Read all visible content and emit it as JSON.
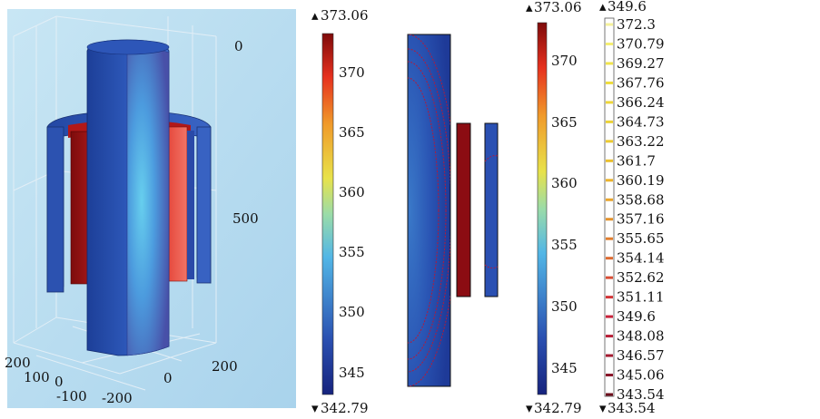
{
  "panel3d": {
    "z_ticks": [
      "0",
      "500"
    ],
    "x_ticks": [
      "200",
      "100",
      "0",
      "-100",
      "-200"
    ],
    "y_ticks": [
      "0",
      "200"
    ]
  },
  "colorbar1": {
    "max_label": "373.06",
    "min_label": "342.79",
    "ticks": [
      "370",
      "365",
      "360",
      "355",
      "350",
      "345"
    ]
  },
  "colorbar2": {
    "max_label": "373.06",
    "min_label": "342.79",
    "ticks": [
      "370",
      "365",
      "360",
      "355",
      "350",
      "345"
    ]
  },
  "contour_legend": {
    "max_label": "349.6",
    "min_label": "343.54",
    "levels": [
      "372.3",
      "370.79",
      "369.27",
      "367.76",
      "366.24",
      "364.73",
      "363.22",
      "361.7",
      "360.19",
      "358.68",
      "357.16",
      "355.65",
      "354.14",
      "352.62",
      "351.11",
      "349.6",
      "348.08",
      "346.57",
      "345.06",
      "343.54"
    ],
    "level_colors": [
      "#f5f29a",
      "#f5ee70",
      "#f0e44c",
      "#eedc3a",
      "#eed63a",
      "#ecd236",
      "#ecca30",
      "#eabf2c",
      "#ebb32c",
      "#e9a52c",
      "#e5932c",
      "#e27e2e",
      "#dd6a30",
      "#d84d34",
      "#d33335",
      "#c9223a",
      "#b81e36",
      "#a41a30",
      "#8a1428",
      "#6e0e1d"
    ]
  },
  "colors": {
    "background_3d": "#bcdff0",
    "cold": "#2a4fa8",
    "hot": "#8b1010",
    "mid": "#5fc8e8"
  }
}
